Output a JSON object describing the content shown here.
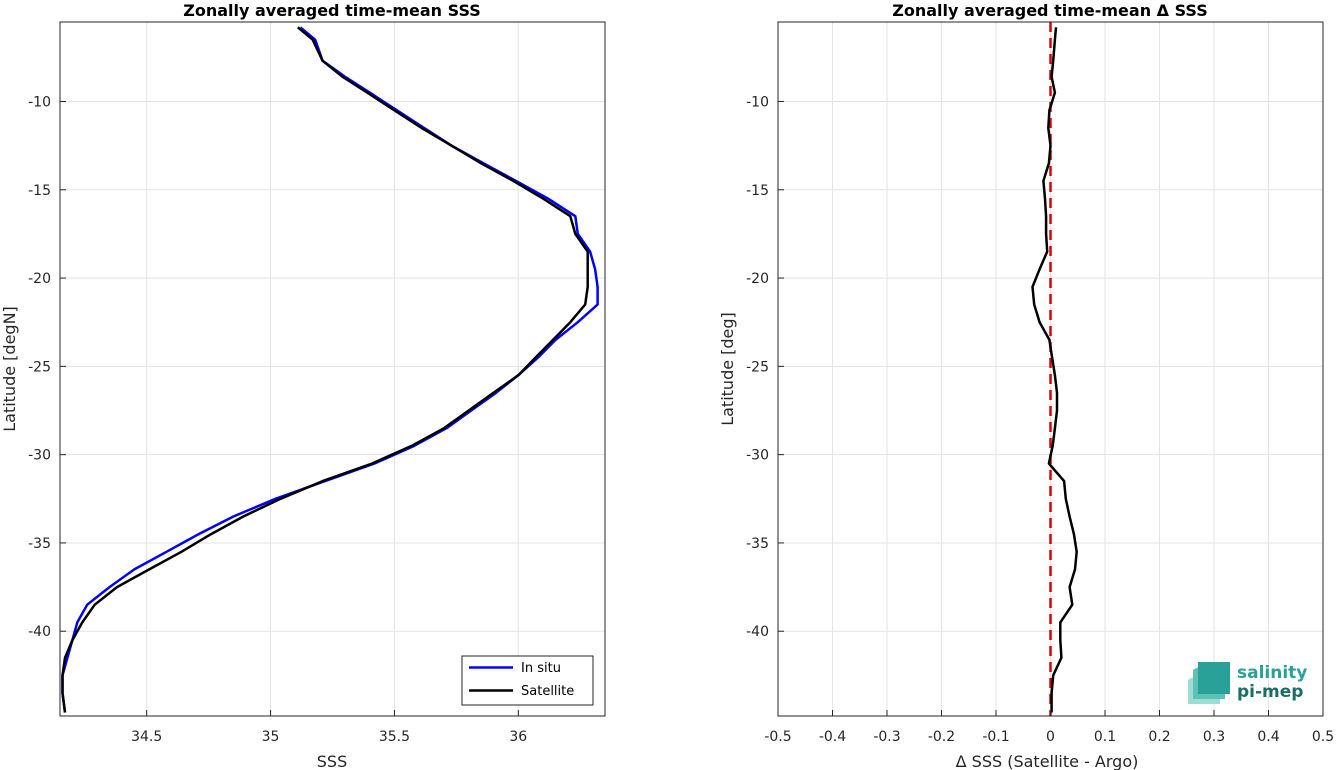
{
  "chart_data": [
    {
      "type": "line",
      "title": "Zonally averaged time-mean SSS",
      "xlabel": "SSS",
      "ylabel": "Latitude [degN]",
      "xlim": [
        34.15,
        36.35
      ],
      "ylim": [
        -44.8,
        -5.5
      ],
      "xticks": [
        34.5,
        35,
        35.5,
        36
      ],
      "xtick_labels": [
        "34.5",
        "35",
        "35.5",
        "36"
      ],
      "yticks": [
        -10,
        -15,
        -20,
        -25,
        -30,
        -35,
        -40
      ],
      "ytick_labels": [
        "-10",
        "-15",
        "-20",
        "-25",
        "-30",
        "-35",
        "-40"
      ],
      "grid": true,
      "legend_position": "bottom-right",
      "series": [
        {
          "name": "In situ",
          "color": "#0000ff",
          "lat": [
            -5.8,
            -6.5,
            -7.7,
            -8.6,
            -9.5,
            -10.5,
            -11.5,
            -12.5,
            -13.5,
            -14.5,
            -15.5,
            -16.5,
            -17.5,
            -18.5,
            -19.5,
            -20.5,
            -21.5,
            -22.5,
            -23.5,
            -24.5,
            -25.5,
            -26.5,
            -27.5,
            -28.5,
            -29.5,
            -30.5,
            -31.5,
            -32.5,
            -33.5,
            -34.5,
            -35.5,
            -36.5,
            -37.5,
            -38.5,
            -39.5,
            -40.5,
            -41.5,
            -42.5,
            -43.5,
            -44.6
          ],
          "sss": [
            35.12,
            35.18,
            35.21,
            35.3,
            35.4,
            35.51,
            35.62,
            35.73,
            35.86,
            35.99,
            36.12,
            36.23,
            36.24,
            36.29,
            36.31,
            36.32,
            36.32,
            36.24,
            36.15,
            36.08,
            36.0,
            35.91,
            35.81,
            35.71,
            35.58,
            35.42,
            35.22,
            35.02,
            34.85,
            34.71,
            34.58,
            34.45,
            34.35,
            34.26,
            34.22,
            34.2,
            34.18,
            34.16,
            34.16,
            34.17
          ]
        },
        {
          "name": "Satellite",
          "color": "#000000",
          "lat": [
            -5.8,
            -6.5,
            -7.7,
            -8.6,
            -9.5,
            -10.5,
            -11.5,
            -12.5,
            -13.5,
            -14.5,
            -15.5,
            -16.5,
            -17.5,
            -18.5,
            -19.5,
            -20.5,
            -21.5,
            -22.5,
            -23.5,
            -24.5,
            -25.5,
            -26.5,
            -27.5,
            -28.5,
            -29.5,
            -30.5,
            -31.5,
            -32.5,
            -33.5,
            -34.5,
            -35.5,
            -36.5,
            -37.5,
            -38.5,
            -39.5,
            -40.5,
            -41.5,
            -42.5,
            -43.5,
            -44.6
          ],
          "sss": [
            35.11,
            35.17,
            35.21,
            35.29,
            35.39,
            35.5,
            35.61,
            35.73,
            35.85,
            35.98,
            36.1,
            36.21,
            36.23,
            36.28,
            36.28,
            36.28,
            36.27,
            36.21,
            36.14,
            36.07,
            36.0,
            35.9,
            35.8,
            35.7,
            35.57,
            35.41,
            35.21,
            35.04,
            34.89,
            34.76,
            34.64,
            34.51,
            34.38,
            34.29,
            34.24,
            34.2,
            34.17,
            34.16,
            34.16,
            34.17
          ]
        }
      ]
    },
    {
      "type": "line",
      "title": "Zonally averaged time-mean Δ SSS",
      "xlabel": "Δ SSS (Satellite - Argo)",
      "ylabel": "Latitude [deg]",
      "xlim": [
        -0.5,
        0.5
      ],
      "ylim": [
        -44.8,
        -5.5
      ],
      "xticks": [
        -0.5,
        -0.4,
        -0.3,
        -0.2,
        -0.1,
        0,
        0.1,
        0.2,
        0.3,
        0.4,
        0.5
      ],
      "xtick_labels": [
        "-0.5",
        "-0.4",
        "-0.3",
        "-0.2",
        "-0.1",
        "0",
        "0.1",
        "0.2",
        "0.3",
        "0.4",
        "0.5"
      ],
      "yticks": [
        -10,
        -15,
        -20,
        -25,
        -30,
        -35,
        -40
      ],
      "ytick_labels": [
        "-10",
        "-15",
        "-20",
        "-25",
        "-30",
        "-35",
        "-40"
      ],
      "grid": true,
      "reference_line": {
        "x": 0,
        "color": "#dd0000",
        "style": "dashed"
      },
      "series": [
        {
          "color": "#000000",
          "lat": [
            -5.8,
            -6.5,
            -7.7,
            -8.6,
            -9.5,
            -10.5,
            -11.5,
            -12.5,
            -13.5,
            -14.5,
            -15.5,
            -16.5,
            -17.5,
            -18.5,
            -19.5,
            -20.5,
            -21.5,
            -22.5,
            -23.5,
            -24.5,
            -25.5,
            -26.5,
            -27.5,
            -28.5,
            -29.5,
            -30.5,
            -31.5,
            -32.5,
            -33.5,
            -34.5,
            -35.5,
            -36.5,
            -37.5,
            -38.5,
            -39.5,
            -40.5,
            -41.5,
            -42.5,
            -43.5,
            -44.6
          ],
          "dsss": [
            0.01,
            0.008,
            0.005,
            0.002,
            0.008,
            -0.002,
            -0.004,
            0.0,
            -0.003,
            -0.013,
            -0.01,
            -0.008,
            -0.008,
            -0.006,
            -0.02,
            -0.033,
            -0.03,
            -0.02,
            -0.002,
            0.003,
            0.008,
            0.012,
            0.012,
            0.008,
            0.004,
            -0.003,
            0.025,
            0.028,
            0.035,
            0.043,
            0.048,
            0.045,
            0.035,
            0.04,
            0.018,
            0.018,
            0.02,
            0.005,
            0.002,
            0.002
          ]
        }
      ]
    }
  ],
  "logo": {
    "line1": "salinity",
    "line2": "pi-mep",
    "color1": "#2aa198",
    "color2": "#1a6d66"
  }
}
